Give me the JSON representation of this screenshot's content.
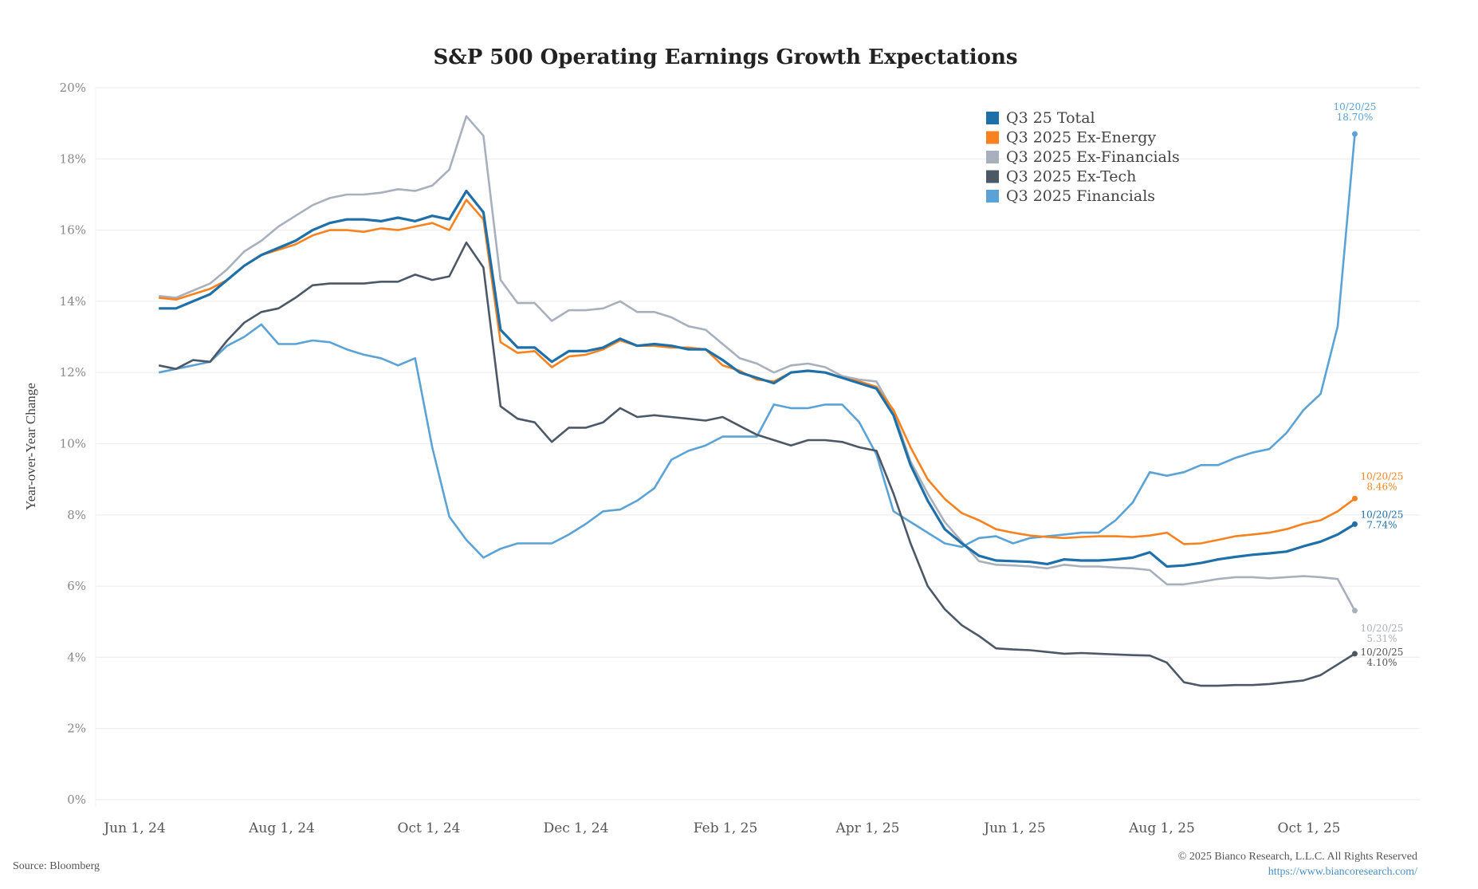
{
  "chart_data": {
    "type": "line",
    "title": "S&P 500 Operating Earnings Growth Expectations",
    "ylabel": "Year-over-Year Change",
    "xlabel": "",
    "ylim": [
      0,
      20
    ],
    "y_ticks": [
      "0%",
      "2%",
      "4%",
      "6%",
      "8%",
      "10%",
      "12%",
      "14%",
      "16%",
      "18%",
      "20%"
    ],
    "y_tick_values": [
      0,
      2,
      4,
      6,
      8,
      10,
      12,
      14,
      16,
      18,
      20
    ],
    "x_ticks": [
      {
        "label": "Jun 1, 24",
        "date": "2024-06-01"
      },
      {
        "label": "Aug 1, 24",
        "date": "2024-08-01"
      },
      {
        "label": "Oct 1, 24",
        "date": "2024-10-01"
      },
      {
        "label": "Dec 1, 24",
        "date": "2024-12-01"
      },
      {
        "label": "Feb 1, 25",
        "date": "2025-02-01"
      },
      {
        "label": "Apr 1, 25",
        "date": "2025-04-01"
      },
      {
        "label": "Jun 1, 25",
        "date": "2025-06-01"
      },
      {
        "label": "Aug 1, 25",
        "date": "2025-08-01"
      },
      {
        "label": "Oct 1, 25",
        "date": "2025-10-01"
      }
    ],
    "x_range": [
      "2024-05-15",
      "2025-11-05"
    ],
    "x_start": "2024-06-11",
    "x_end": "2025-10-20",
    "x_frequency": "weekly",
    "grid": true,
    "legend_position": "top-right",
    "series": [
      {
        "name": "Q3 25 Total",
        "color": "#1f6fa8",
        "end_label": [
          "10/20/25",
          "7.74%"
        ],
        "values": [
          13.8,
          13.8,
          14.0,
          14.2,
          14.6,
          15.0,
          15.3,
          15.5,
          15.7,
          16.0,
          16.2,
          16.3,
          16.3,
          16.25,
          16.35,
          16.25,
          16.4,
          16.3,
          17.1,
          16.5,
          13.2,
          12.7,
          12.7,
          12.3,
          12.6,
          12.6,
          12.7,
          12.95,
          12.75,
          12.8,
          12.75,
          12.65,
          12.65,
          12.35,
          12.0,
          11.85,
          11.7,
          12.0,
          12.05,
          12.0,
          11.85,
          11.7,
          11.55,
          10.8,
          9.4,
          8.4,
          7.6,
          7.2,
          6.85,
          6.72,
          6.7,
          6.68,
          6.62,
          6.75,
          6.72,
          6.72,
          6.75,
          6.8,
          6.95,
          6.55,
          6.58,
          6.65,
          6.75,
          6.82,
          6.88,
          6.92,
          6.97,
          7.12,
          7.25,
          7.45,
          7.74
        ]
      },
      {
        "name": "Q3 2025 Ex-Energy",
        "color": "#f7821f",
        "end_label": [
          "10/20/25",
          "8.46%"
        ],
        "values": [
          14.1,
          14.05,
          14.2,
          14.35,
          14.6,
          15.0,
          15.3,
          15.45,
          15.6,
          15.85,
          16.0,
          16.0,
          15.95,
          16.05,
          16.0,
          16.1,
          16.2,
          16.0,
          16.85,
          16.3,
          12.85,
          12.55,
          12.6,
          12.15,
          12.45,
          12.5,
          12.65,
          12.9,
          12.75,
          12.75,
          12.7,
          12.7,
          12.65,
          12.2,
          12.05,
          11.8,
          11.75,
          12.0,
          12.05,
          12.0,
          11.85,
          11.75,
          11.6,
          10.95,
          9.9,
          9.0,
          8.45,
          8.05,
          7.85,
          7.6,
          7.5,
          7.42,
          7.38,
          7.35,
          7.38,
          7.4,
          7.4,
          7.38,
          7.42,
          7.5,
          7.18,
          7.2,
          7.3,
          7.4,
          7.45,
          7.5,
          7.6,
          7.75,
          7.85,
          8.1,
          8.46
        ]
      },
      {
        "name": "Q3 2025 Ex-Financials",
        "color": "#a9b0bd",
        "end_label": [
          "10/20/25",
          "5.31%"
        ],
        "values": [
          14.15,
          14.1,
          14.3,
          14.5,
          14.9,
          15.4,
          15.7,
          16.1,
          16.4,
          16.7,
          16.9,
          17.0,
          17.0,
          17.05,
          17.15,
          17.1,
          17.25,
          17.7,
          19.2,
          18.65,
          14.6,
          13.95,
          13.95,
          13.45,
          13.75,
          13.75,
          13.8,
          14.0,
          13.7,
          13.7,
          13.55,
          13.3,
          13.2,
          12.8,
          12.4,
          12.25,
          12.0,
          12.2,
          12.25,
          12.15,
          11.9,
          11.8,
          11.75,
          10.9,
          9.5,
          8.6,
          7.8,
          7.25,
          6.7,
          6.6,
          6.58,
          6.55,
          6.5,
          6.6,
          6.55,
          6.55,
          6.52,
          6.5,
          6.45,
          6.05,
          6.05,
          6.12,
          6.2,
          6.25,
          6.25,
          6.22,
          6.25,
          6.28,
          6.25,
          6.2,
          5.31
        ]
      },
      {
        "name": "Q3 2025 Ex-Tech",
        "color": "#4d5866",
        "end_label": [
          "10/20/25",
          "4.10%"
        ],
        "values": [
          12.2,
          12.1,
          12.35,
          12.3,
          12.9,
          13.4,
          13.7,
          13.8,
          14.1,
          14.45,
          14.5,
          14.5,
          14.5,
          14.55,
          14.55,
          14.75,
          14.6,
          14.7,
          15.65,
          14.95,
          11.05,
          10.7,
          10.6,
          10.05,
          10.45,
          10.45,
          10.6,
          11.0,
          10.75,
          10.8,
          10.75,
          10.7,
          10.65,
          10.75,
          10.5,
          10.25,
          10.1,
          9.95,
          10.1,
          10.1,
          10.05,
          9.9,
          9.8,
          8.6,
          7.2,
          6.0,
          5.35,
          4.9,
          4.6,
          4.25,
          4.22,
          4.2,
          4.15,
          4.1,
          4.12,
          4.1,
          4.08,
          4.06,
          4.05,
          3.85,
          3.3,
          3.2,
          3.2,
          3.22,
          3.22,
          3.25,
          3.3,
          3.35,
          3.5,
          3.8,
          4.1
        ]
      },
      {
        "name": "Q3 2025 Financials",
        "color": "#5ba3d6",
        "end_label": [
          "10/20/25",
          "18.70%"
        ],
        "values": [
          12.0,
          12.1,
          12.2,
          12.3,
          12.75,
          13.0,
          13.35,
          12.8,
          12.8,
          12.9,
          12.85,
          12.65,
          12.5,
          12.4,
          12.2,
          12.4,
          9.9,
          7.95,
          7.3,
          6.8,
          7.05,
          7.2,
          7.2,
          7.2,
          7.45,
          7.75,
          8.1,
          8.15,
          8.4,
          8.75,
          9.55,
          9.8,
          9.95,
          10.2,
          10.2,
          10.2,
          11.1,
          11.0,
          11.0,
          11.1,
          11.1,
          10.6,
          9.7,
          8.1,
          7.8,
          7.5,
          7.2,
          7.1,
          7.35,
          7.4,
          7.2,
          7.35,
          7.4,
          7.45,
          7.5,
          7.5,
          7.85,
          8.35,
          9.2,
          9.1,
          9.2,
          9.4,
          9.4,
          9.6,
          9.75,
          9.85,
          10.3,
          10.95,
          11.4,
          13.3,
          18.7
        ]
      }
    ],
    "source": "Source: Bloomberg",
    "copyright": "© 2025 Bianco Research, L.L.C. All Rights Reserved",
    "url_text": "https://www.biancoresearch.com/"
  }
}
